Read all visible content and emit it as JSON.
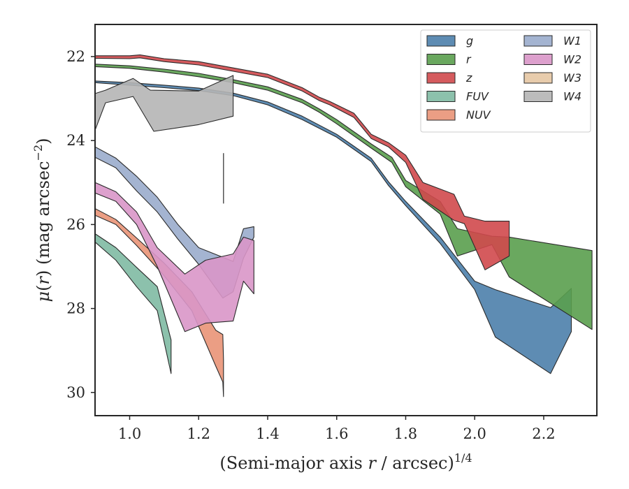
{
  "chart_data": {
    "type": "area",
    "xlabel": "(Semi-major axis r / arcsec)^{1/4}",
    "xlabel_parts": {
      "pre": "(Semi-major axis ",
      "var": "r",
      "mid": " / arcsec)",
      "sup": "1/4"
    },
    "ylabel": "μ(r) (mag arcsec^{−2})",
    "ylabel_parts": {
      "mu": "μ",
      "open": "(",
      "var": "r",
      "close": ")",
      "unit": " (mag arcsec",
      "sup": "−2",
      "end": ")"
    },
    "xlim": [
      0.9,
      2.36
    ],
    "ylim": [
      30.55,
      21.25
    ],
    "y_inverted": true,
    "x_ticks": [
      1.0,
      1.2,
      1.4,
      1.6,
      1.8,
      2.0,
      2.2
    ],
    "x_tick_labels": [
      "1.0",
      "1.2",
      "1.4",
      "1.6",
      "1.8",
      "2.0",
      "2.2"
    ],
    "y_ticks": [
      22,
      24,
      26,
      28,
      30
    ],
    "y_tick_labels": [
      "22",
      "24",
      "26",
      "28",
      "30"
    ],
    "grid": false,
    "legend_position": "top-right",
    "legend_columns": 2,
    "vline": {
      "x": 1.272,
      "y": [
        24.3,
        25.5
      ]
    },
    "series": [
      {
        "name": "g",
        "color": "#4c7fab",
        "upper": [
          [
            0.9,
            22.58
          ],
          [
            1.0,
            22.62
          ],
          [
            1.1,
            22.68
          ],
          [
            1.2,
            22.75
          ],
          [
            1.3,
            22.87
          ],
          [
            1.4,
            23.08
          ],
          [
            1.5,
            23.42
          ],
          [
            1.6,
            23.85
          ],
          [
            1.7,
            24.42
          ],
          [
            1.75,
            24.98
          ],
          [
            1.8,
            25.45
          ],
          [
            1.9,
            26.3
          ],
          [
            2.0,
            27.35
          ],
          [
            2.06,
            27.55
          ],
          [
            2.22,
            27.98
          ],
          [
            2.28,
            27.52
          ]
        ],
        "lower": [
          [
            0.9,
            22.62
          ],
          [
            1.0,
            22.68
          ],
          [
            1.1,
            22.74
          ],
          [
            1.2,
            22.81
          ],
          [
            1.3,
            22.93
          ],
          [
            1.4,
            23.15
          ],
          [
            1.5,
            23.5
          ],
          [
            1.6,
            23.92
          ],
          [
            1.7,
            24.5
          ],
          [
            1.75,
            25.07
          ],
          [
            1.8,
            25.55
          ],
          [
            1.9,
            26.45
          ],
          [
            2.0,
            27.55
          ],
          [
            2.06,
            28.68
          ],
          [
            2.22,
            29.55
          ],
          [
            2.28,
            28.55
          ]
        ]
      },
      {
        "name": "r",
        "color": "#5a9e4e",
        "upper": [
          [
            0.9,
            22.18
          ],
          [
            1.0,
            22.22
          ],
          [
            1.1,
            22.3
          ],
          [
            1.2,
            22.4
          ],
          [
            1.3,
            22.55
          ],
          [
            1.4,
            22.72
          ],
          [
            1.5,
            23.02
          ],
          [
            1.55,
            23.25
          ],
          [
            1.6,
            23.5
          ],
          [
            1.7,
            24.08
          ],
          [
            1.76,
            24.4
          ],
          [
            1.8,
            24.95
          ],
          [
            1.9,
            25.45
          ],
          [
            1.95,
            26.1
          ],
          [
            2.05,
            26.28
          ],
          [
            2.1,
            26.3
          ],
          [
            2.34,
            26.62
          ]
        ],
        "lower": [
          [
            0.9,
            22.24
          ],
          [
            1.0,
            22.28
          ],
          [
            1.1,
            22.37
          ],
          [
            1.2,
            22.48
          ],
          [
            1.3,
            22.62
          ],
          [
            1.4,
            22.8
          ],
          [
            1.5,
            23.1
          ],
          [
            1.55,
            23.33
          ],
          [
            1.6,
            23.6
          ],
          [
            1.7,
            24.18
          ],
          [
            1.76,
            24.52
          ],
          [
            1.8,
            25.1
          ],
          [
            1.9,
            25.75
          ],
          [
            1.95,
            26.75
          ],
          [
            2.05,
            26.48
          ],
          [
            2.1,
            27.25
          ],
          [
            2.34,
            28.5
          ]
        ]
      },
      {
        "name": "z",
        "color": "#d0494c",
        "upper": [
          [
            0.9,
            21.98
          ],
          [
            1.0,
            21.98
          ],
          [
            1.03,
            21.96
          ],
          [
            1.1,
            22.05
          ],
          [
            1.2,
            22.12
          ],
          [
            1.3,
            22.27
          ],
          [
            1.4,
            22.42
          ],
          [
            1.5,
            22.74
          ],
          [
            1.55,
            22.97
          ],
          [
            1.58,
            23.07
          ],
          [
            1.65,
            23.35
          ],
          [
            1.7,
            23.85
          ],
          [
            1.75,
            24.05
          ],
          [
            1.8,
            24.35
          ],
          [
            1.85,
            25.0
          ],
          [
            1.94,
            25.28
          ],
          [
            1.97,
            25.8
          ],
          [
            2.03,
            25.92
          ],
          [
            2.1,
            25.92
          ]
        ],
        "lower": [
          [
            0.9,
            22.04
          ],
          [
            1.0,
            22.05
          ],
          [
            1.03,
            22.03
          ],
          [
            1.1,
            22.12
          ],
          [
            1.2,
            22.2
          ],
          [
            1.3,
            22.35
          ],
          [
            1.4,
            22.5
          ],
          [
            1.5,
            22.82
          ],
          [
            1.55,
            23.05
          ],
          [
            1.58,
            23.15
          ],
          [
            1.65,
            23.45
          ],
          [
            1.7,
            23.95
          ],
          [
            1.75,
            24.15
          ],
          [
            1.8,
            24.52
          ],
          [
            1.85,
            25.4
          ],
          [
            1.94,
            25.9
          ],
          [
            1.97,
            25.98
          ],
          [
            2.03,
            27.08
          ],
          [
            2.1,
            26.75
          ]
        ]
      },
      {
        "name": "FUV",
        "color": "#7fbaa3",
        "upper": [
          [
            0.9,
            26.22
          ],
          [
            0.96,
            26.55
          ],
          [
            1.02,
            27.02
          ],
          [
            1.08,
            27.48
          ],
          [
            1.12,
            28.75
          ]
        ],
        "lower": [
          [
            0.9,
            26.42
          ],
          [
            0.96,
            26.85
          ],
          [
            1.02,
            27.48
          ],
          [
            1.08,
            28.05
          ],
          [
            1.12,
            29.55
          ]
        ]
      },
      {
        "name": "NUV",
        "color": "#e99477",
        "upper": [
          [
            0.9,
            25.62
          ],
          [
            0.96,
            25.88
          ],
          [
            1.02,
            26.32
          ],
          [
            1.1,
            26.92
          ],
          [
            1.18,
            27.6
          ],
          [
            1.25,
            28.52
          ],
          [
            1.27,
            28.62
          ],
          [
            1.272,
            29.22
          ]
        ],
        "lower": [
          [
            0.9,
            25.78
          ],
          [
            0.96,
            26.0
          ],
          [
            1.02,
            26.5
          ],
          [
            1.1,
            27.22
          ],
          [
            1.18,
            28.05
          ],
          [
            1.25,
            29.38
          ],
          [
            1.27,
            29.75
          ],
          [
            1.272,
            30.1
          ]
        ]
      },
      {
        "name": "W1",
        "color": "#9aaccc",
        "upper": [
          [
            0.9,
            24.15
          ],
          [
            0.96,
            24.42
          ],
          [
            1.02,
            24.85
          ],
          [
            1.08,
            25.35
          ],
          [
            1.14,
            26.0
          ],
          [
            1.2,
            26.55
          ],
          [
            1.27,
            26.78
          ],
          [
            1.3,
            26.88
          ],
          [
            1.33,
            26.1
          ],
          [
            1.36,
            26.05
          ]
        ],
        "lower": [
          [
            0.9,
            24.4
          ],
          [
            0.96,
            24.65
          ],
          [
            1.02,
            25.2
          ],
          [
            1.08,
            25.7
          ],
          [
            1.14,
            26.35
          ],
          [
            1.2,
            26.95
          ],
          [
            1.27,
            27.75
          ],
          [
            1.3,
            27.6
          ],
          [
            1.33,
            26.8
          ],
          [
            1.36,
            26.3
          ]
        ]
      },
      {
        "name": "W2",
        "color": "#d996c8",
        "upper": [
          [
            0.9,
            25.0
          ],
          [
            0.96,
            25.22
          ],
          [
            1.02,
            25.7
          ],
          [
            1.08,
            26.55
          ],
          [
            1.16,
            27.18
          ],
          [
            1.22,
            26.85
          ],
          [
            1.3,
            26.7
          ],
          [
            1.33,
            26.3
          ],
          [
            1.36,
            26.38
          ]
        ],
        "lower": [
          [
            0.9,
            25.25
          ],
          [
            0.96,
            25.45
          ],
          [
            1.02,
            26.0
          ],
          [
            1.08,
            27.0
          ],
          [
            1.16,
            28.55
          ],
          [
            1.22,
            28.35
          ],
          [
            1.3,
            28.3
          ],
          [
            1.33,
            27.35
          ],
          [
            1.36,
            27.65
          ]
        ]
      },
      {
        "name": "W3",
        "color": "#e6c6a3",
        "upper": [],
        "lower": []
      },
      {
        "name": "W4",
        "color": "#b5b5b5",
        "upper": [
          [
            0.9,
            22.88
          ],
          [
            0.93,
            22.8
          ],
          [
            1.01,
            22.52
          ],
          [
            1.06,
            22.8
          ],
          [
            1.2,
            22.82
          ],
          [
            1.3,
            22.45
          ]
        ],
        "lower": [
          [
            0.9,
            23.75
          ],
          [
            0.93,
            23.1
          ],
          [
            1.01,
            22.95
          ],
          [
            1.07,
            23.78
          ],
          [
            1.2,
            23.62
          ],
          [
            1.3,
            23.42
          ]
        ]
      }
    ]
  }
}
